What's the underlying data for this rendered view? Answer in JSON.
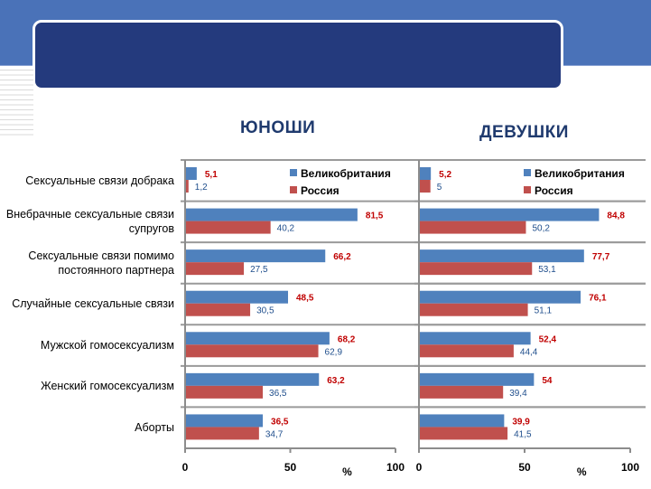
{
  "chart_data": [
    {
      "type": "bar",
      "orientation": "horizontal",
      "title": "ЮНОШИ",
      "xlabel": "%",
      "xlim": [
        0,
        100
      ],
      "xticks": [
        0,
        50,
        100
      ],
      "categories": [
        "Сексуальные связи добрака",
        "Внебрачные сексуальные связи супругов",
        "Сексуальные связи помимо постоянного партнера",
        "Случайные сексуальные связи",
        "Мужской гомосексуализм",
        "Женский гомосексуализм",
        "Аборты"
      ],
      "series": [
        {
          "name": "Великобритания",
          "color": "#4f81bd",
          "values": [
            5.1,
            81.5,
            66.2,
            48.5,
            68.2,
            63.2,
            36.5
          ],
          "labels": [
            "5,1",
            "81,5",
            "66,2",
            "48,5",
            "68,2",
            "63,2",
            "36,5"
          ]
        },
        {
          "name": "Россия",
          "color": "#c0504d",
          "values": [
            1.2,
            40.2,
            27.5,
            30.5,
            62.9,
            36.5,
            34.7
          ],
          "labels": [
            "1,2",
            "40,2",
            "27,5",
            "30,5",
            "62,9",
            "36,5",
            "34,7"
          ]
        }
      ],
      "legend": "top-right"
    },
    {
      "type": "bar",
      "orientation": "horizontal",
      "title": "ДЕВУШКИ",
      "xlabel": "%",
      "xlim": [
        0,
        100
      ],
      "xticks": [
        0,
        50,
        100
      ],
      "series": [
        {
          "name": "Великобритания",
          "color": "#4f81bd",
          "values": [
            5.2,
            84.8,
            77.7,
            76.1,
            52.4,
            54,
            39.9
          ],
          "labels": [
            "5,2",
            "84,8",
            "77,7",
            "76,1",
            "52,4",
            "54",
            "39,9"
          ]
        },
        {
          "name": "Россия",
          "color": "#c0504d",
          "values": [
            5,
            50.2,
            53.1,
            51.1,
            44.4,
            39.4,
            41.5
          ],
          "labels": [
            "5",
            "50,2",
            "53,1",
            "51,1",
            "44,4",
            "39,4",
            "41,5"
          ]
        }
      ],
      "legend": "top-right"
    }
  ],
  "label_colors": {
    "uk": "#c00000",
    "ru": "#1f4e8c"
  }
}
